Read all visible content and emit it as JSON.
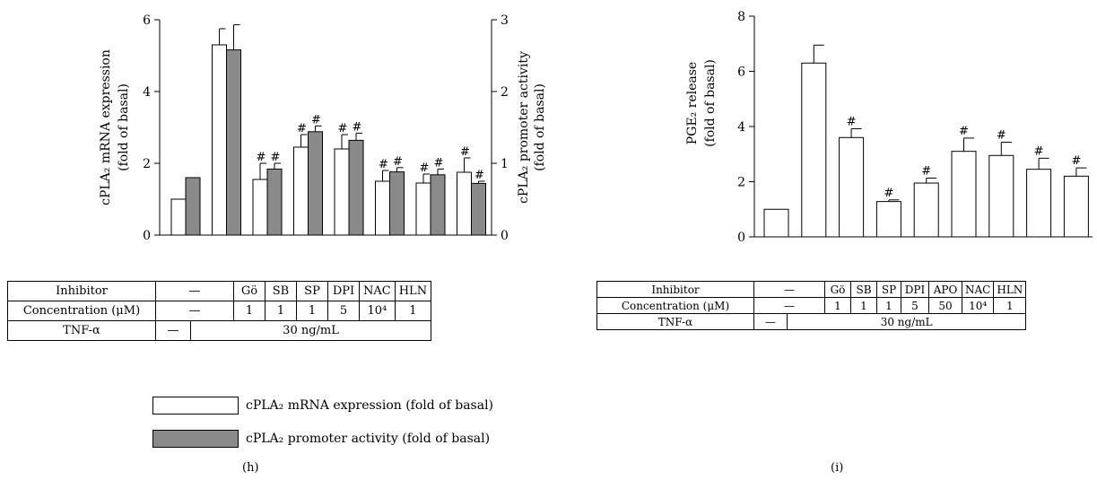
{
  "chart_data": [
    {
      "panel": "(h)",
      "type": "bar",
      "ylabel_left": [
        "cPLA₂ mRNA expression",
        "(fold of basal)"
      ],
      "ylabel_right": [
        "cPLA₂ promoter activity",
        "(fold of basal)"
      ],
      "ylim_left": [
        0,
        6
      ],
      "ylim_right": [
        0,
        3
      ],
      "yticks_left": [
        "0",
        "2",
        "4",
        "6"
      ],
      "yticks_right": [
        "0",
        "1",
        "2",
        "3"
      ],
      "series": [
        {
          "name": "cPLA₂ mRNA expression (fold of basal)",
          "axis": "left",
          "color": "#ffffff",
          "values": [
            1.0,
            5.3,
            1.55,
            2.45,
            2.4,
            1.5,
            1.45,
            1.75
          ],
          "errors": [
            0,
            0.45,
            0.45,
            0.35,
            0.4,
            0.3,
            0.25,
            0.4
          ],
          "marks": [
            "",
            "",
            "#",
            "#",
            "#",
            "#",
            "#",
            "#"
          ]
        },
        {
          "name": "cPLA₂ promoter activity (fold of basal)",
          "axis": "right",
          "color": "#8a8a8a",
          "values": [
            0.8,
            2.58,
            0.92,
            1.44,
            1.32,
            0.88,
            0.84,
            0.72
          ],
          "errors": [
            0,
            0.35,
            0.08,
            0.08,
            0.1,
            0.06,
            0.08,
            0.03
          ],
          "marks": [
            "",
            "",
            "#",
            "#",
            "#",
            "#",
            "#",
            "#"
          ]
        }
      ],
      "table": {
        "rows": [
          [
            "Inhibitor",
            "—",
            "Gö",
            "SB",
            "SP",
            "DPI",
            "NAC",
            "HLN"
          ],
          [
            "Concentration (μM)",
            "—",
            "1",
            "1",
            "1",
            "5",
            "10⁴",
            "1"
          ],
          [
            "TNF-α",
            "—",
            "30 ng/mL"
          ]
        ]
      }
    },
    {
      "panel": "(i)",
      "type": "bar",
      "ylabel": [
        "PGE₂ release",
        "(fold of basal)"
      ],
      "ylim": [
        0,
        8
      ],
      "yticks": [
        "0",
        "2",
        "4",
        "6",
        "8"
      ],
      "series": [
        {
          "color": "#ffffff",
          "values": [
            1.0,
            6.3,
            3.6,
            1.28,
            1.95,
            3.1,
            2.95,
            2.45,
            2.2
          ],
          "errors": [
            0,
            0.65,
            0.32,
            0.06,
            0.18,
            0.48,
            0.48,
            0.4,
            0.3
          ],
          "marks": [
            "",
            "",
            "#",
            "#",
            "#",
            "#",
            "#",
            "#",
            "#"
          ]
        }
      ],
      "table": {
        "rows": [
          [
            "Inhibitor",
            "—",
            "Gö",
            "SB",
            "SP",
            "DPI",
            "APO",
            "NAC",
            "HLN"
          ],
          [
            "Concentration (μM)",
            "—",
            "1",
            "1",
            "1",
            "5",
            "50",
            "10⁴",
            "1"
          ],
          [
            "TNF-α",
            "—",
            "30 ng/mL"
          ]
        ]
      }
    }
  ],
  "labels": {
    "h": "(h)",
    "i": "(i)"
  },
  "legend": {
    "white": "cPLA₂ mRNA expression (fold of basal)",
    "gray": "cPLA₂ promoter activity (fold of basal)"
  }
}
